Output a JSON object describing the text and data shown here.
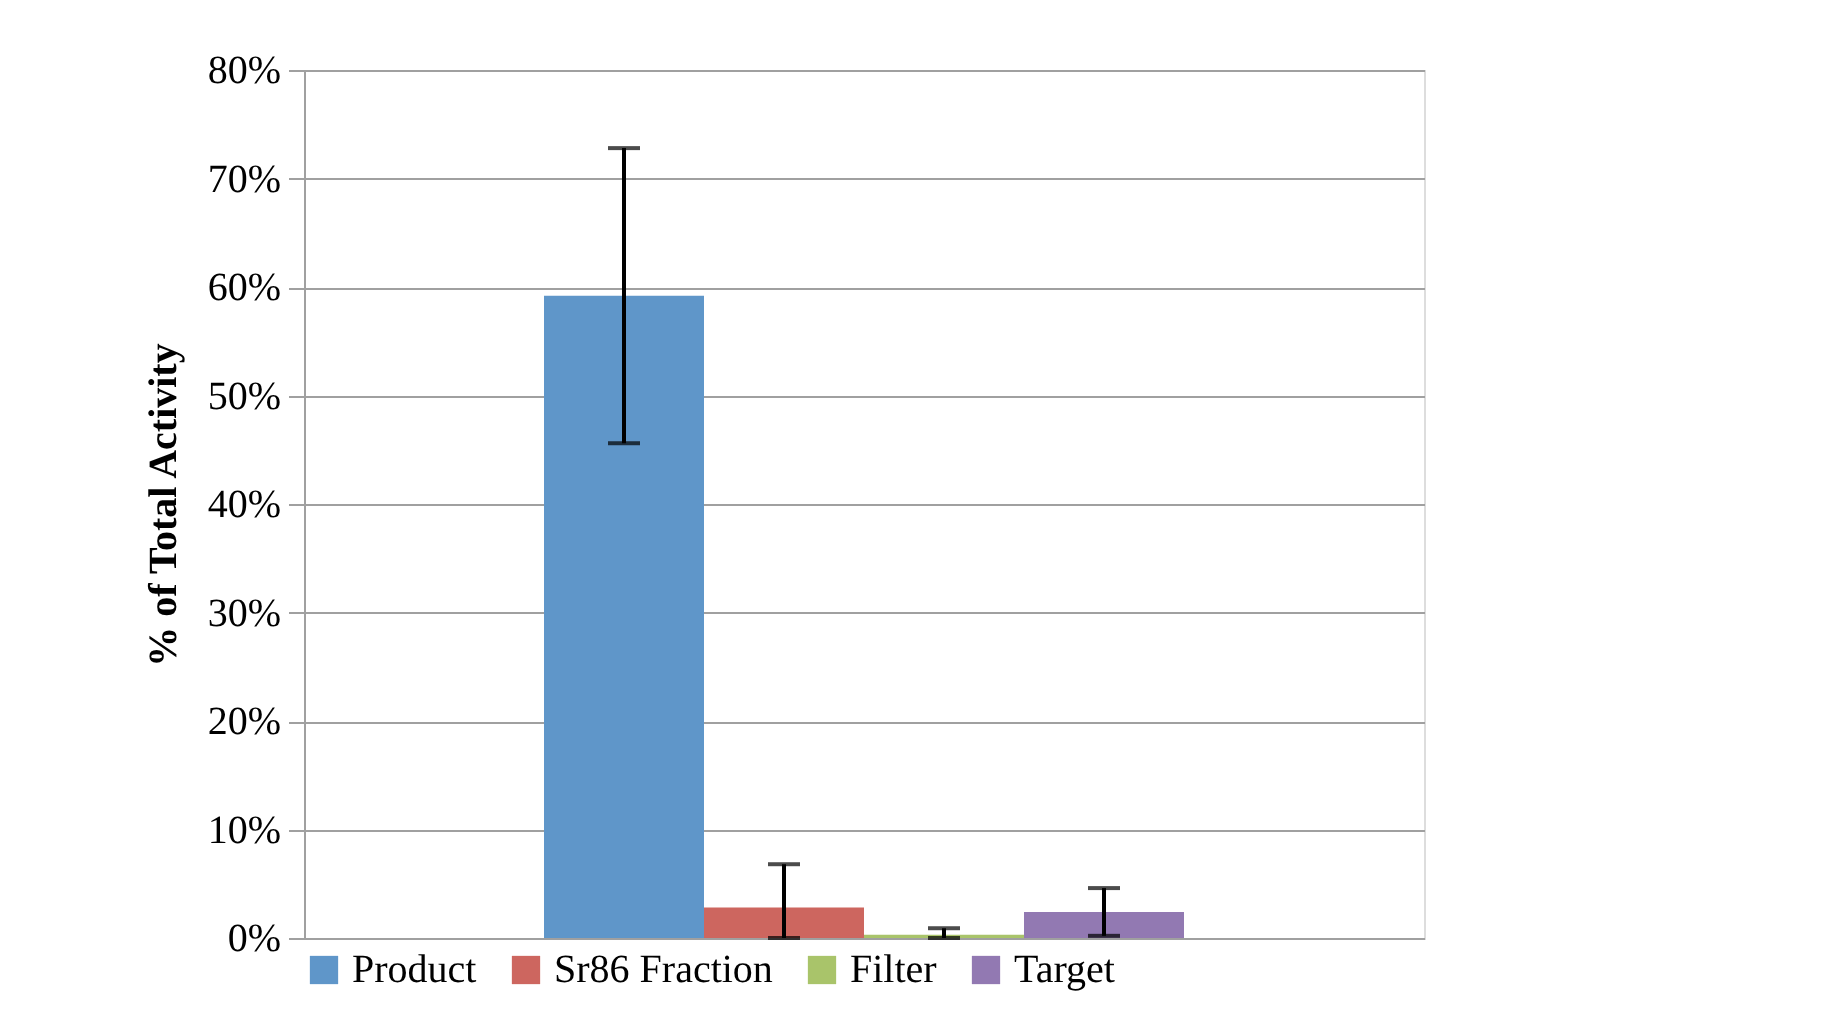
{
  "chart_data": {
    "type": "bar",
    "ylabel": "% of Total Activity",
    "categories": [
      null
    ],
    "series": [
      {
        "name": "Product",
        "color": "#5f96c9",
        "values": [
          59.2
        ],
        "errors": [
          13.6
        ]
      },
      {
        "name": "Sr86 Fraction",
        "color": "#cd665f",
        "values": [
          2.8
        ],
        "errors": [
          [
            0,
            6.8
          ]
        ]
      },
      {
        "name": "Filter",
        "color": "#a9c46a",
        "values": [
          0.3
        ],
        "errors": [
          [
            0,
            0.9
          ]
        ]
      },
      {
        "name": "Target",
        "color": "#9279b2",
        "values": [
          2.4
        ],
        "errors": [
          2.2
        ]
      }
    ],
    "ylim": [
      0,
      80
    ],
    "yticks": [
      {
        "value": 0,
        "label": "0%"
      },
      {
        "value": 10,
        "label": "10%"
      },
      {
        "value": 20,
        "label": "20%"
      },
      {
        "value": 30,
        "label": "30%"
      },
      {
        "value": 40,
        "label": "40%"
      },
      {
        "value": 50,
        "label": "50%"
      },
      {
        "value": 60,
        "label": "60%"
      },
      {
        "value": 70,
        "label": "70%"
      },
      {
        "value": 80,
        "label": "80%"
      }
    ],
    "grid": "y",
    "legend": "bottom"
  }
}
